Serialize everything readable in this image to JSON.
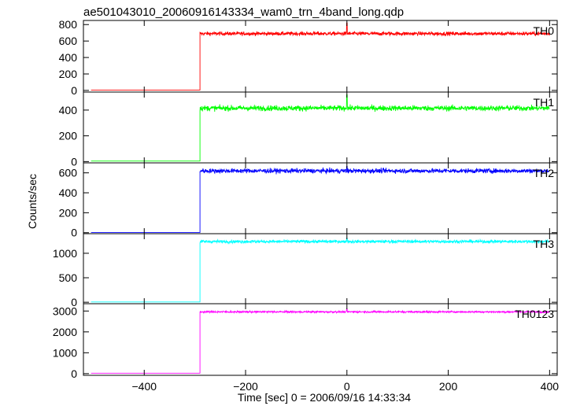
{
  "chart_data": {
    "type": "line",
    "title": "ae501043010_20060916143334_wam0_trn_4band_long.qdp",
    "xlabel": "Time [sec] 0 = 2006/09/16 14:33:34",
    "ylabel": "Counts/sec",
    "xlim": [
      -520,
      415
    ],
    "x_ticks": [
      -400,
      -200,
      0,
      200,
      400
    ],
    "x_tick_labels": [
      "−400",
      "−200",
      "0",
      "200",
      "400"
    ],
    "step_x": -290,
    "x_range": [
      -505,
      400
    ],
    "spike_x": 0,
    "panels": [
      {
        "name": "TH0",
        "color": "#ff0000",
        "ylim": [
          -20,
          850
        ],
        "yticks": [
          0,
          200,
          400,
          600,
          800
        ],
        "pre_level": 5,
        "post_level": 690,
        "noise": 22,
        "spike_peak": 820
      },
      {
        "name": "TH1",
        "color": "#00ff00",
        "ylim": [
          -10,
          540
        ],
        "yticks": [
          0,
          200,
          400
        ],
        "pre_level": 4,
        "post_level": 415,
        "noise": 20,
        "spike_peak": 520
      },
      {
        "name": "TH2",
        "color": "#0000ff",
        "ylim": [
          -10,
          700
        ],
        "yticks": [
          0,
          200,
          400,
          600
        ],
        "pre_level": 3,
        "post_level": 620,
        "noise": 22,
        "spike_peak": 665
      },
      {
        "name": "TH3",
        "color": "#00ffff",
        "ylim": [
          -30,
          1400
        ],
        "yticks": [
          0,
          500,
          1000
        ],
        "pre_level": 5,
        "post_level": 1240,
        "noise": 30,
        "spike_peak": 1310
      },
      {
        "name": "TH0123",
        "color": "#ff00ff",
        "ylim": [
          -80,
          3350
        ],
        "yticks": [
          0,
          1000,
          2000,
          3000
        ],
        "pre_level": 20,
        "post_level": 2960,
        "noise": 40,
        "spike_peak": 3100
      }
    ]
  }
}
